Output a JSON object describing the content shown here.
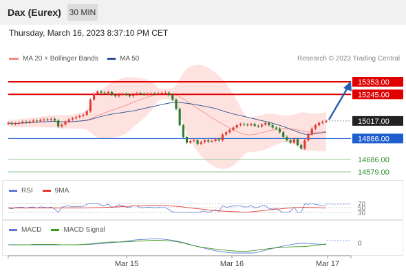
{
  "header": {
    "title": "Dax (Eurex)",
    "timeframe": "30 MIN"
  },
  "date_text": "Thursday, March 16, 2023 8:37:10 PM CET",
  "legend": {
    "bollinger": {
      "label": "MA 20 + Bollinger Bands",
      "color": "#f08a80"
    },
    "ma50": {
      "label": "MA 50",
      "color": "#2e4f8f"
    }
  },
  "credit": "Research © 2023 Trading Central",
  "rsi_legend": {
    "rsi": "RSI",
    "ma": "9MA"
  },
  "macd_legend": {
    "macd": "MACD",
    "signal": "MACD Signal"
  },
  "chart_data": {
    "type": "candlestick",
    "title": "Dax (Eurex)",
    "interval": "30 MIN",
    "x_tick_labels": [
      "Mar 15",
      "Mar 16",
      "Mar 17"
    ],
    "y_range": [
      14500,
      15400
    ],
    "levels": [
      {
        "value": 15353.0,
        "label": "15353.00",
        "kind": "resistance",
        "color": "#e00000"
      },
      {
        "value": 15245.0,
        "label": "15245.00",
        "kind": "resistance",
        "color": "#e00000"
      },
      {
        "value": 15017.0,
        "label": "15017.00",
        "kind": "last",
        "color": "#222222"
      },
      {
        "value": 14866.0,
        "label": "14866.00",
        "kind": "pivot",
        "color": "#1e5fd0"
      },
      {
        "value": 14686.0,
        "label": "14686.00",
        "kind": "support",
        "color": "#2a8a2a"
      },
      {
        "value": 14579.0,
        "label": "14579.00",
        "kind": "support",
        "color": "#2a8a2a"
      }
    ],
    "colors": {
      "up": "#e53935",
      "down": "#2e7d32",
      "band": "#fcd6d3",
      "ma20": "#f08a80",
      "ma50": "#2e4f8f",
      "arrow": "#2a5fb0"
    },
    "candles_close": [
      15000,
      14990,
      14995,
      15002,
      15010,
      15005,
      15012,
      15020,
      15015,
      15025,
      15030,
      15028,
      15035,
      15020,
      14970,
      14985,
      15010,
      15030,
      15040,
      15050,
      15060,
      15070,
      15100,
      15200,
      15250,
      15270,
      15260,
      15255,
      15265,
      15240,
      15230,
      15245,
      15250,
      15240,
      15230,
      15245,
      15255,
      15250,
      15245,
      15248,
      15252,
      15250,
      15255,
      15258,
      15260,
      15240,
      15200,
      15120,
      14980,
      14880,
      14830,
      14845,
      14850,
      14820,
      14835,
      14850,
      14840,
      14845,
      14860,
      14850,
      14900,
      14920,
      14940,
      14960,
      14980,
      14990,
      14985,
      14980,
      14990,
      14975,
      14970,
      14985,
      15000,
      14980,
      14960,
      14950,
      14920,
      14880,
      14850,
      14830,
      14860,
      14810,
      14780,
      14850,
      14900,
      14950,
      14980,
      15000,
      15010,
      15017
    ],
    "rsi": {
      "levels": [
        70,
        50,
        30
      ]
    },
    "macd": {
      "levels": [
        0
      ]
    }
  }
}
